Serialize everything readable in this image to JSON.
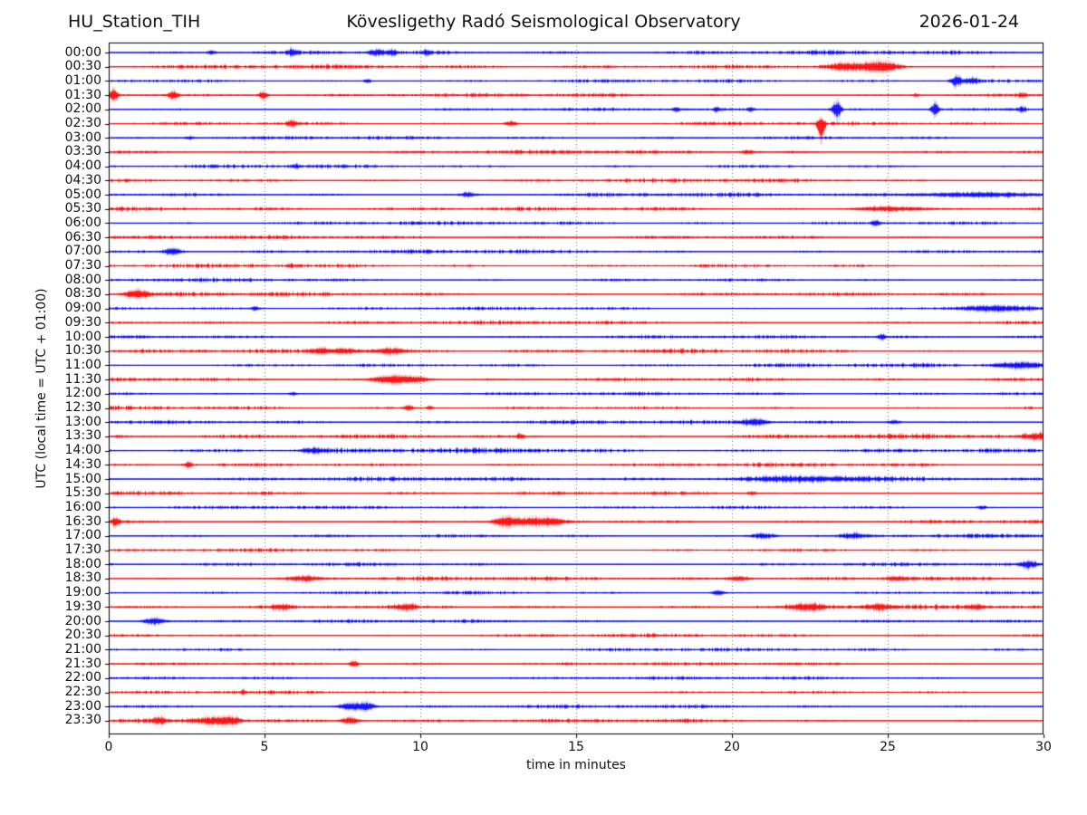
{
  "header": {
    "station": "HU_Station_TIH",
    "title": "Kövesligethy Radó Seismological Observatory",
    "date": "2026-01-24"
  },
  "chart_data": {
    "type": "line",
    "subtype": "helicorder-seismogram",
    "station": "HU_Station_TIH",
    "title": "Kövesligethy Radó Seismological Observatory",
    "date": "2026-01-24",
    "xlabel": "time in minutes",
    "ylabel": "UTC (local time = UTC + 01:00)",
    "xlim": [
      0,
      30
    ],
    "x_ticks": [
      0,
      5,
      10,
      15,
      20,
      25,
      30
    ],
    "minutes_per_line": 30,
    "grid": {
      "vertical": true,
      "style": "dotted",
      "color": "#666666"
    },
    "palette": {
      "blue": "#0000ff",
      "red": "#ff0000",
      "axis": "#000000"
    },
    "rows": [
      {
        "label": "00:00",
        "color": "blue",
        "base": 1.0,
        "events": [
          [
            5.9,
            2.5,
            0.12
          ],
          [
            8.6,
            2.5,
            0.18
          ],
          [
            9.1,
            2.5,
            0.12
          ],
          [
            3.3,
            1.5,
            0.1
          ],
          [
            10.2,
            1.5,
            0.1
          ]
        ]
      },
      {
        "label": "00:30",
        "color": "red",
        "base": 1.0,
        "events": [
          [
            24.2,
            2.5,
            0.5
          ],
          [
            24.9,
            3,
            0.35
          ],
          [
            23.4,
            1.5,
            0.3
          ]
        ]
      },
      {
        "label": "01:00",
        "color": "blue",
        "base": 0.9,
        "events": [
          [
            27.2,
            4.5,
            0.12
          ],
          [
            27.7,
            2.5,
            0.15
          ],
          [
            8.3,
            1.5,
            0.1
          ]
        ]
      },
      {
        "label": "01:30",
        "color": "red",
        "base": 0.95,
        "events": [
          [
            0.15,
            4.5,
            0.1
          ],
          [
            2.05,
            3.5,
            0.12
          ],
          [
            4.95,
            3.5,
            0.1
          ],
          [
            25.9,
            1.5,
            0.08
          ],
          [
            29.3,
            1.5,
            0.1
          ]
        ]
      },
      {
        "label": "02:00",
        "color": "blue",
        "base": 0.8,
        "events": [
          [
            18.2,
            2,
            0.08
          ],
          [
            19.5,
            2,
            0.08
          ],
          [
            20.6,
            2,
            0.08
          ],
          [
            23.35,
            7,
            0.1
          ],
          [
            26.5,
            5,
            0.1
          ],
          [
            29.3,
            2,
            0.08
          ]
        ]
      },
      {
        "label": "02:30",
        "color": "red",
        "base": 0.9,
        "events": [
          [
            5.85,
            2.5,
            0.1
          ],
          [
            12.9,
            2,
            0.15
          ],
          [
            22.85,
            13,
            0.08,
            1
          ]
        ]
      },
      {
        "label": "03:00",
        "color": "blue",
        "base": 0.8,
        "events": [
          [
            2.6,
            1.2,
            0.1
          ]
        ]
      },
      {
        "label": "03:30",
        "color": "red",
        "base": 0.9,
        "events": [
          [
            20.5,
            1.5,
            0.15
          ]
        ]
      },
      {
        "label": "04:00",
        "color": "blue",
        "base": 0.8,
        "events": [
          [
            6.0,
            1.5,
            0.1
          ]
        ]
      },
      {
        "label": "04:30",
        "color": "red",
        "base": 0.9,
        "events": []
      },
      {
        "label": "05:00",
        "color": "blue",
        "base": 0.9,
        "events": [
          [
            11.5,
            2,
            0.15
          ],
          [
            27.7,
            1.8,
            1.6
          ]
        ]
      },
      {
        "label": "05:30",
        "color": "red",
        "base": 1.0,
        "events": [
          [
            25.0,
            2,
            0.8
          ]
        ]
      },
      {
        "label": "06:00",
        "color": "blue",
        "base": 0.85,
        "events": [
          [
            24.6,
            2.5,
            0.1
          ]
        ]
      },
      {
        "label": "06:30",
        "color": "red",
        "base": 0.9,
        "events": []
      },
      {
        "label": "07:00",
        "color": "blue",
        "base": 0.95,
        "events": [
          [
            2.05,
            2.5,
            0.2
          ]
        ]
      },
      {
        "label": "07:30",
        "color": "red",
        "base": 0.9,
        "events": [
          [
            5.8,
            1.3,
            0.1
          ]
        ]
      },
      {
        "label": "08:00",
        "color": "blue",
        "base": 0.85,
        "events": []
      },
      {
        "label": "08:30",
        "color": "red",
        "base": 1.0,
        "events": [
          [
            0.7,
            2.2,
            0.2
          ],
          [
            1.1,
            2.5,
            0.2
          ]
        ]
      },
      {
        "label": "09:00",
        "color": "blue",
        "base": 0.9,
        "events": [
          [
            4.7,
            1.8,
            0.08
          ],
          [
            28.3,
            2,
            0.8
          ]
        ]
      },
      {
        "label": "09:30",
        "color": "red",
        "base": 0.9,
        "events": []
      },
      {
        "label": "10:00",
        "color": "blue",
        "base": 0.85,
        "events": [
          [
            24.8,
            2.5,
            0.1
          ]
        ]
      },
      {
        "label": "10:30",
        "color": "red",
        "base": 1.0,
        "events": [
          [
            6.8,
            2,
            0.25
          ],
          [
            7.6,
            2,
            0.3
          ],
          [
            9.0,
            2.2,
            0.4
          ]
        ]
      },
      {
        "label": "11:00",
        "color": "blue",
        "base": 0.9,
        "events": [
          [
            29.2,
            2.2,
            0.6
          ]
        ]
      },
      {
        "label": "11:30",
        "color": "red",
        "base": 1.0,
        "events": [
          [
            8.8,
            2.5,
            0.3
          ],
          [
            9.3,
            2.8,
            0.25
          ],
          [
            9.9,
            2.5,
            0.3
          ]
        ]
      },
      {
        "label": "12:00",
        "color": "blue",
        "base": 0.8,
        "events": [
          [
            5.9,
            1.5,
            0.1
          ]
        ]
      },
      {
        "label": "12:30",
        "color": "red",
        "base": 0.9,
        "events": [
          [
            9.6,
            2,
            0.12
          ],
          [
            10.3,
            1.6,
            0.1
          ]
        ]
      },
      {
        "label": "13:00",
        "color": "blue",
        "base": 0.95,
        "events": [
          [
            20.7,
            2.5,
            0.3
          ],
          [
            25.2,
            1.6,
            0.15
          ]
        ]
      },
      {
        "label": "13:30",
        "color": "red",
        "base": 1.15,
        "events": [
          [
            13.2,
            2,
            0.1
          ],
          [
            29.8,
            2.5,
            0.3
          ]
        ]
      },
      {
        "label": "14:00",
        "color": "blue",
        "base": 1.2,
        "events": [
          [
            6.5,
            2,
            0.25
          ]
        ]
      },
      {
        "label": "14:30",
        "color": "red",
        "base": 0.9,
        "events": [
          [
            2.55,
            2.5,
            0.1
          ]
        ]
      },
      {
        "label": "15:00",
        "color": "blue",
        "base": 1.05,
        "events": [
          [
            22.5,
            1.8,
            1.5
          ]
        ]
      },
      {
        "label": "15:30",
        "color": "red",
        "base": 0.9,
        "events": [
          [
            20.6,
            1.5,
            0.1
          ]
        ]
      },
      {
        "label": "16:00",
        "color": "blue",
        "base": 0.8,
        "events": [
          [
            28.0,
            1.6,
            0.12
          ]
        ]
      },
      {
        "label": "16:30",
        "color": "red",
        "base": 0.9,
        "events": [
          [
            0.2,
            3.5,
            0.08
          ],
          [
            12.7,
            3,
            0.25
          ],
          [
            13.5,
            2.5,
            0.5
          ],
          [
            14.3,
            2,
            0.3
          ]
        ]
      },
      {
        "label": "17:00",
        "color": "blue",
        "base": 0.9,
        "events": [
          [
            21.0,
            2.2,
            0.3
          ],
          [
            23.9,
            2,
            0.25
          ]
        ]
      },
      {
        "label": "17:30",
        "color": "red",
        "base": 0.8,
        "events": []
      },
      {
        "label": "18:00",
        "color": "blue",
        "base": 0.9,
        "events": [
          [
            29.5,
            2.5,
            0.2
          ]
        ]
      },
      {
        "label": "18:30",
        "color": "red",
        "base": 1.0,
        "events": [
          [
            6.3,
            1.8,
            0.4
          ],
          [
            20.2,
            1.8,
            0.3
          ],
          [
            25.3,
            1.6,
            0.3
          ]
        ]
      },
      {
        "label": "19:00",
        "color": "blue",
        "base": 0.8,
        "events": [
          [
            19.55,
            2.2,
            0.15
          ]
        ]
      },
      {
        "label": "19:30",
        "color": "red",
        "base": 1.1,
        "events": [
          [
            5.5,
            1.8,
            0.2
          ],
          [
            9.5,
            2.2,
            0.25
          ],
          [
            22.4,
            2.2,
            0.4
          ],
          [
            24.7,
            2.2,
            0.25
          ],
          [
            27.9,
            1.8,
            0.15
          ]
        ]
      },
      {
        "label": "20:00",
        "color": "blue",
        "base": 0.8,
        "events": [
          [
            1.45,
            3,
            0.25
          ]
        ]
      },
      {
        "label": "20:30",
        "color": "red",
        "base": 0.8,
        "events": []
      },
      {
        "label": "21:00",
        "color": "blue",
        "base": 0.8,
        "events": []
      },
      {
        "label": "21:30",
        "color": "red",
        "base": 0.8,
        "events": [
          [
            7.85,
            2.5,
            0.12
          ]
        ]
      },
      {
        "label": "22:00",
        "color": "blue",
        "base": 0.8,
        "events": []
      },
      {
        "label": "22:30",
        "color": "red",
        "base": 0.8,
        "events": [
          [
            4.3,
            1.3,
            0.1
          ]
        ]
      },
      {
        "label": "23:00",
        "color": "blue",
        "base": 0.8,
        "events": [
          [
            7.8,
            3,
            0.3
          ],
          [
            8.3,
            2.8,
            0.2
          ]
        ]
      },
      {
        "label": "23:30",
        "color": "red",
        "base": 1.0,
        "events": [
          [
            1.6,
            2.2,
            0.15
          ],
          [
            3.3,
            2.5,
            0.4
          ],
          [
            3.9,
            2.5,
            0.25
          ],
          [
            7.75,
            2.8,
            0.2
          ]
        ]
      }
    ]
  }
}
